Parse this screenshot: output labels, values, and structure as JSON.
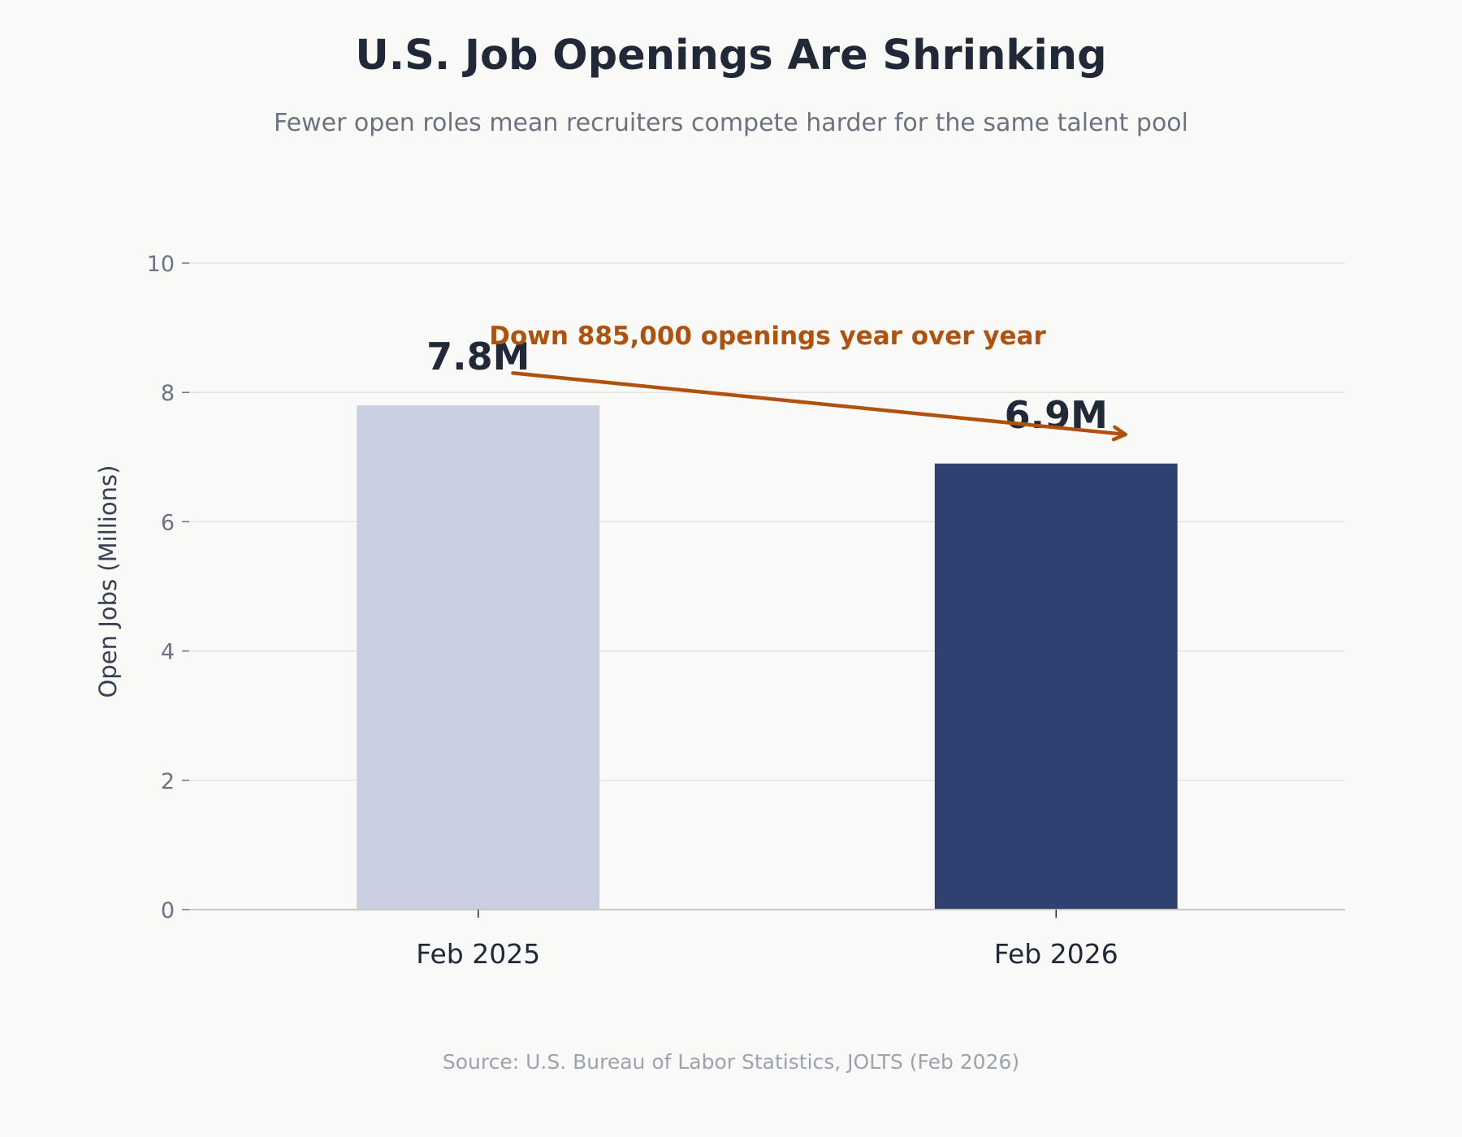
{
  "chart_data": {
    "type": "bar",
    "title": "U.S. Job Openings Are Shrinking",
    "subtitle": "Fewer open roles mean recruiters compete harder for the same talent pool",
    "xlabel": "",
    "ylabel": "Open Jobs (Millions)",
    "categories": [
      "Feb 2025",
      "Feb 2026"
    ],
    "values": [
      7.8,
      6.9
    ],
    "data_labels": [
      "7.8M",
      "6.9M"
    ],
    "bar_colors": [
      "#c9cee0",
      "#2f4170"
    ],
    "ylim": [
      0,
      10
    ],
    "yticks": [
      0,
      2,
      4,
      6,
      8,
      10
    ],
    "grid": "horizontal",
    "annotation": {
      "text": "Down 885,000 openings year over year",
      "color": "#b0520d",
      "arrow_from": [
        0.28,
        8.3
      ],
      "arrow_to": [
        0.81,
        7.35
      ]
    },
    "source": "Source: U.S. Bureau of Labor Statistics, JOLTS (Feb 2026)"
  },
  "colors": {
    "background": "#f9f9f7",
    "title": "#1f2937",
    "subtitle": "#6b7280",
    "tick_label": "#6b7280",
    "category_label": "#1f2937",
    "data_label": "#1f2937",
    "gridline": "#e3e3e3",
    "axis": "#c8c8c8",
    "source": "#9ca3af"
  }
}
